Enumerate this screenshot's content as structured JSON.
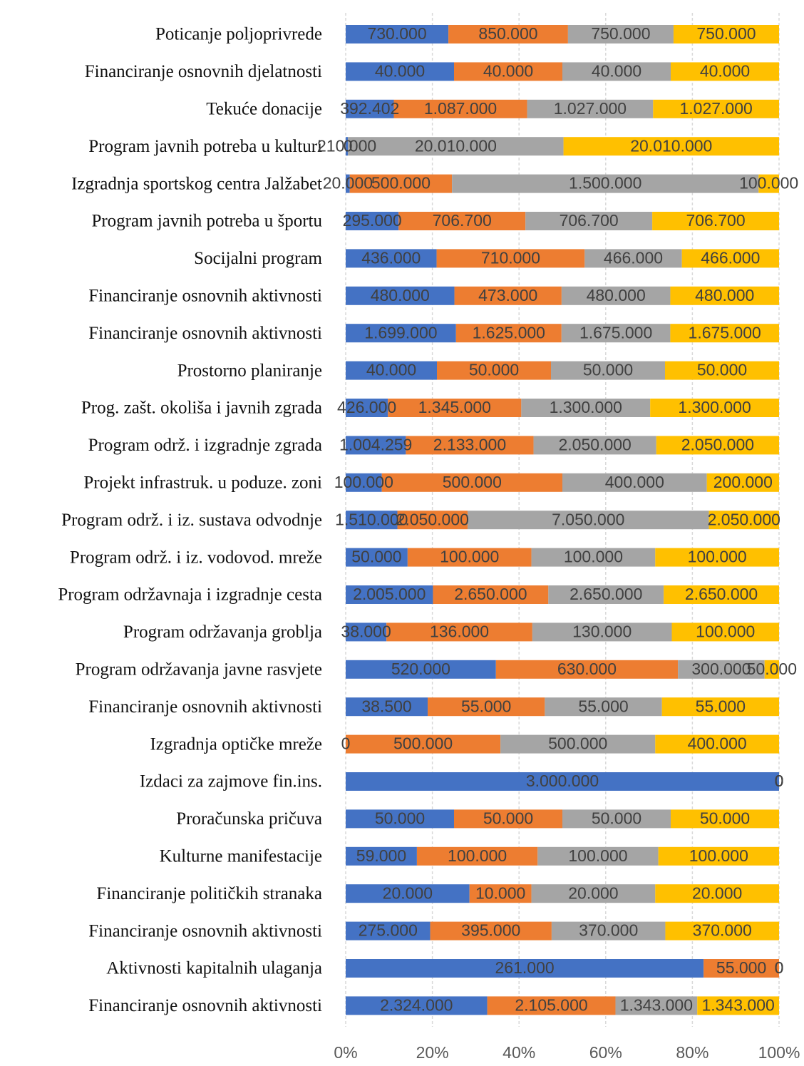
{
  "chart_data": {
    "type": "stacked_bar_100",
    "orientation": "horizontal",
    "categories": [
      "Poticanje poljoprivrede",
      "Financiranje osnovnih djelatnosti",
      "Tekuće donacije",
      "Program javnih potreba u kulturi",
      "Izgradnja sportskog centra Jalžabet",
      "Program javnih potreba u športu",
      "Socijalni program",
      "Financiranje osnovnih aktivnosti",
      "Financiranje osnovnih aktivnosti",
      "Prostorno planiranje",
      "Prog. zašt. okoliša i javnih zgrada",
      "Program održ. i izgradnje zgrada",
      "Projekt infrastruk. u poduze. zoni",
      "Program održ. i iz. sustava odvodnje",
      "Program održ. i iz. vodovod. mreže",
      "Program održavnaja i izgradnje cesta",
      "Program održavanja groblja",
      "Program održavanja javne rasvjete",
      "Financiranje osnovnih aktivnosti",
      "Izgradnja optičke mreže",
      "Izdaci za zajmove fin.ins.",
      "Proračunska pričuva",
      "Kulturne manifestacije",
      "Financiranje političkih stranaka",
      "Financiranje osnovnih aktivnosti",
      "Aktivnosti kapitalnih ulaganja",
      "Financiranje osnovnih aktivnosti"
    ],
    "series": [
      {
        "color": "#4472c4",
        "values": [
          730000,
          40000,
          392402,
          210000,
          20000,
          295000,
          436000,
          480000,
          1699000,
          40000,
          426000,
          1004259,
          100000,
          1510000,
          50000,
          2005000,
          38000,
          520000,
          38500,
          0,
          3000000,
          50000,
          59000,
          20000,
          275000,
          261000,
          2324000
        ],
        "value_labels": [
          "730.000",
          "40.000",
          "392.402",
          "210.000",
          "20.000",
          "295.000",
          "436.000",
          "480.000",
          "1.699.000",
          "40.000",
          "426.000",
          "1.004.259",
          "100.000",
          "1.510.000",
          "50.000",
          "2.005.000",
          "38.000",
          "520.000",
          "38.500",
          "0",
          "3.000.000",
          "50.000",
          "59.000",
          "20.000",
          "275.000",
          "261.000",
          "2.324.000"
        ]
      },
      {
        "color": "#ed7d31",
        "values": [
          850000,
          40000,
          1087000,
          0,
          500000,
          706700,
          710000,
          473000,
          1625000,
          50000,
          1345000,
          2133000,
          500000,
          2050000,
          100000,
          2650000,
          136000,
          630000,
          55000,
          500000,
          0,
          50000,
          100000,
          10000,
          395000,
          55000,
          2105000
        ],
        "value_labels": [
          "850.000",
          "40.000",
          "1.087.000",
          "0",
          "500.000",
          "706.700",
          "710.000",
          "473.000",
          "1.625.000",
          "50.000",
          "1.345.000",
          "2.133.000",
          "500.000",
          "2.050.000",
          "100.000",
          "2.650.000",
          "136.000",
          "630.000",
          "55.000",
          "500.000",
          "0",
          "50.000",
          "100.000",
          "10.000",
          "395.000",
          "55.000",
          "2.105.000"
        ]
      },
      {
        "color": "#a5a5a5",
        "values": [
          750000,
          40000,
          1027000,
          20010000,
          1500000,
          706700,
          466000,
          480000,
          1675000,
          50000,
          1300000,
          2050000,
          400000,
          7050000,
          100000,
          2650000,
          130000,
          300000,
          55000,
          500000,
          0,
          50000,
          100000,
          20000,
          370000,
          0,
          1343000
        ],
        "value_labels": [
          "750.000",
          "40.000",
          "1.027.000",
          "20.010.000",
          "1.500.000",
          "706.700",
          "466.000",
          "480.000",
          "1.675.000",
          "50.000",
          "1.300.000",
          "2.050.000",
          "400.000",
          "7.050.000",
          "100.000",
          "2.650.000",
          "130.000",
          "300.000",
          "55.000",
          "500.000",
          "0",
          "50.000",
          "100.000",
          "20.000",
          "370.000",
          "0",
          "1.343.000"
        ]
      },
      {
        "color": "#ffc000",
        "values": [
          750000,
          40000,
          1027000,
          20010000,
          100000,
          706700,
          466000,
          480000,
          1675000,
          50000,
          1300000,
          2050000,
          200000,
          2050000,
          100000,
          2650000,
          100000,
          50000,
          55000,
          400000,
          0,
          50000,
          100000,
          20000,
          370000,
          0,
          1343000
        ],
        "value_labels": [
          "750.000",
          "40.000",
          "1.027.000",
          "20.010.000",
          "100.000",
          "706.700",
          "466.000",
          "480.000",
          "1.675.000",
          "50.000",
          "1.300.000",
          "2.050.000",
          "200.000",
          "2.050.000",
          "100.000",
          "2.650.000",
          "100.000",
          "50.000",
          "55.000",
          "400.000",
          "0",
          "50.000",
          "100.000",
          "20.000",
          "370.000",
          "0",
          "1.343.000"
        ]
      }
    ],
    "xlim": [
      0,
      100
    ],
    "xticks": [
      {
        "value": 0,
        "label": "0%"
      },
      {
        "value": 20,
        "label": "20%"
      },
      {
        "value": 40,
        "label": "40%"
      },
      {
        "value": 60,
        "label": "60%"
      },
      {
        "value": 80,
        "label": "80%"
      },
      {
        "value": 100,
        "label": "100%"
      }
    ],
    "grid": true
  }
}
